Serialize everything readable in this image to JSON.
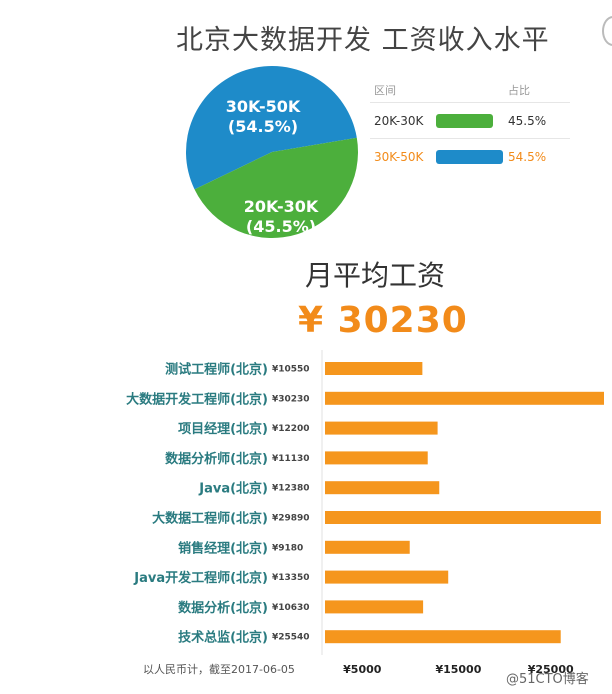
{
  "chart_data": [
    {
      "type": "pie",
      "title": "北京大数据开发 工资收入水平",
      "legend_headers": [
        "区间",
        "占比"
      ],
      "slices": [
        {
          "name": "30K-50K",
          "value": 54.5,
          "label_pct": "(54.5%)",
          "pct_text": "54.5%",
          "color": "#1e8bc9",
          "text_color": "#f28b1a"
        },
        {
          "name": "20K-30K",
          "value": 45.5,
          "label_pct": "(45.5%)",
          "pct_text": "45.5%",
          "color": "#4caf3c",
          "text_color": "#333333"
        }
      ]
    },
    {
      "type": "bar",
      "orientation": "horizontal",
      "title": "月平均工资",
      "headline": "¥ 30230",
      "categories": [
        "测试工程师(北京)",
        "大数据开发工程师(北京)",
        "项目经理(北京)",
        "数据分析师(北京)",
        "Java(北京)",
        "大数据工程师(北京)",
        "销售经理(北京)",
        "Java开发工程师(北京)",
        "数据分析(北京)",
        "技术总监(北京)"
      ],
      "value_labels": [
        "¥10550",
        "¥30230",
        "¥12200",
        "¥11130",
        "¥12380",
        "¥29890",
        "¥9180",
        "¥13350",
        "¥10630",
        "¥25540"
      ],
      "values": [
        10550,
        30230,
        12200,
        11130,
        12380,
        29890,
        9180,
        13350,
        10630,
        25540
      ],
      "ticks": [
        5000,
        15000,
        25000
      ],
      "tick_labels": [
        "¥5000",
        "¥15000",
        "¥25000"
      ],
      "xlim": [
        0,
        30500
      ],
      "footnote": "以人民币计，截至2017-06-05",
      "bar_color": "#f5961d"
    }
  ],
  "watermark": "@51CTO博客"
}
